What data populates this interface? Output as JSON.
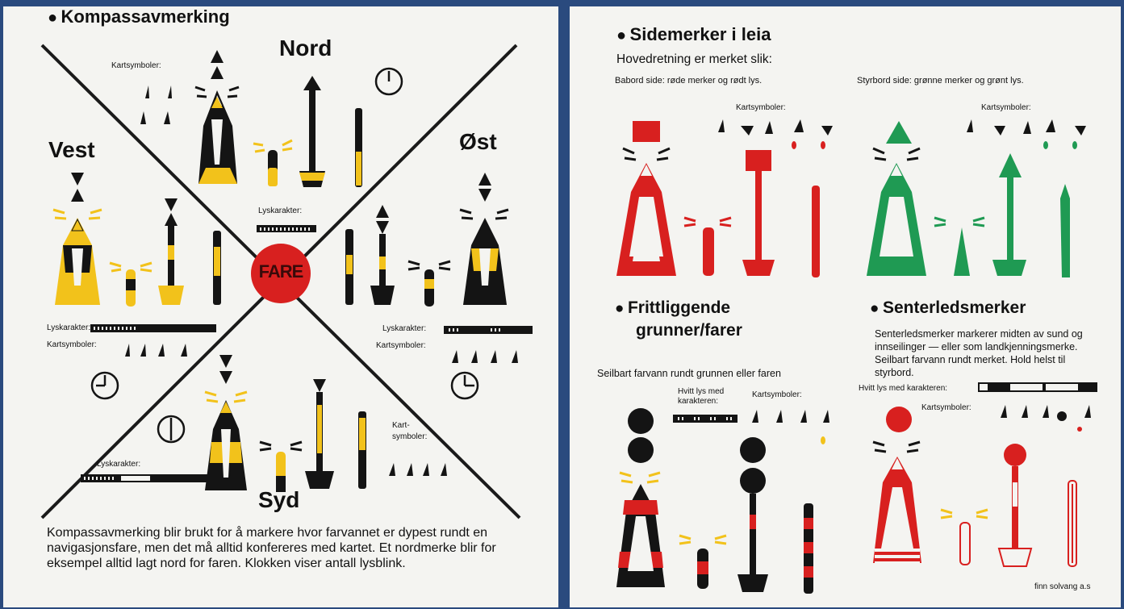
{
  "left": {
    "title": "Kompassavmerking",
    "north_label": "Nord",
    "south_label": "Syd",
    "west_label": "Vest",
    "east_label": "Øst",
    "center_badge": "FARE",
    "north": {
      "chart_symbols_label": "Kartsymboler:"
    },
    "center": {
      "light_label": "Lyskarakter:"
    },
    "west": {
      "light_label": "Lyskarakter:",
      "chart_symbols_label": "Kartsymboler:"
    },
    "east": {
      "light_label": "Lyskarakter:",
      "chart_symbols_label": "Kartsymboler:"
    },
    "south": {
      "light_label": "Lyskarakter:",
      "chart_symbols_label_1": "Kart-",
      "chart_symbols_label_2": "symboler:"
    },
    "description": "Kompassavmerking blir brukt for å markere hvor farvannet er dypest rundt en navigasjonsfare, men det må alltid konfereres med kartet. Et nordmerke blir for eksempel alltid lagt nord for faren. Klokken viser antall lysblink."
  },
  "right": {
    "side_title": "Sidemerker i leia",
    "side_subtitle": "Hovedretning er merket slik:",
    "port_text": "Babord side: røde merker og rødt lys.",
    "starboard_text": "Styrbord side: grønne merker og grønt lys.",
    "port_chart_symbols_label": "Kartsymboler:",
    "starboard_chart_symbols_label": "Kartsymboler:",
    "isolated_title_1": "Frittliggende",
    "isolated_title_2": "grunner/farer",
    "isolated_text": "Seilbart farvann rundt grunnen eller faren",
    "isolated_light_label_1": "Hvitt lys med",
    "isolated_light_label_2": "karakteren:",
    "isolated_chart_symbols_label": "Kartsymboler:",
    "safe_title": "Senterledsmerker",
    "safe_text": "Senterledsmerker markerer midten av sund og innseilinger — eller som landkjenningsmerke. Seilbart farvann rundt merket. Hold helst til styrbord.",
    "safe_light_label": "Hvitt lys med karakteren:",
    "safe_chart_symbols_label": "Kartsymboler:",
    "credit": "finn solvang a.s"
  },
  "colors": {
    "background": "#2a4a7e",
    "panel": "#f4f4f1",
    "yellow": "#f2c21b",
    "red": "#d8201f",
    "green": "#1f9a53",
    "black": "#141414"
  }
}
